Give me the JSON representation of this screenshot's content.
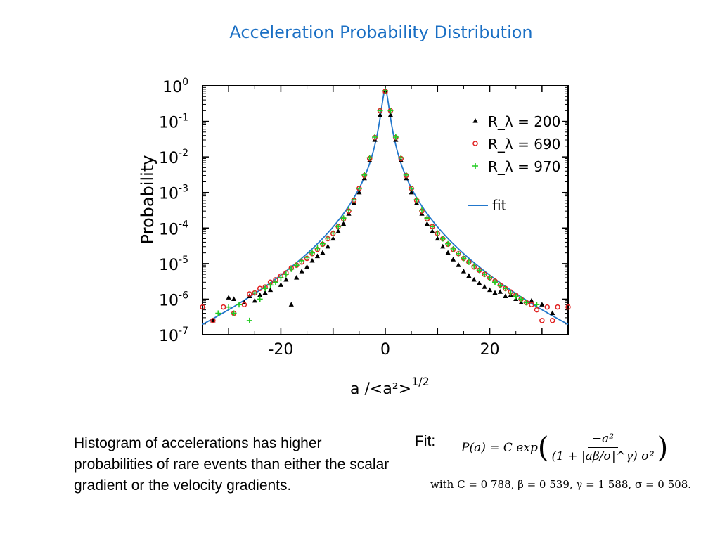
{
  "slide": {
    "title": "Acceleration Probability Distribution",
    "body_text": "Histogram of accelerations has higher probabilities of rare events than either the scalar gradient or the velocity gradients.",
    "fit_label": "Fit:",
    "formula": {
      "lhs": "P(a) = C exp",
      "numerator": "−a²",
      "denominator": "(1 + |aβ/σ|^γ) σ²"
    },
    "parameters": "with C = 0 788, β = 0 539, γ = 1 588, σ = 0 508."
  },
  "chart_data": {
    "type": "scatter",
    "title": "",
    "xlabel": "a /<a²>^1/2",
    "ylabel": "Probability",
    "xlim": [
      -35,
      35
    ],
    "ylim": [
      1e-07,
      1
    ],
    "yscale": "log",
    "xticks": [
      -20,
      0,
      20
    ],
    "ytick_labels": [
      "10^0",
      "10^-1",
      "10^-2",
      "10^-3",
      "10^-4",
      "10^-5",
      "10^-6",
      "10^-7"
    ],
    "grid": false,
    "legend_position": "top-right",
    "fit_params": {
      "C": 0.788,
      "beta": 0.539,
      "gamma": 1.588,
      "sigma": 0.508
    },
    "series": [
      {
        "name": "R_λ = 200",
        "marker": "triangle",
        "color": "#000000",
        "points": [
          [
            -33,
            2.5e-07
          ],
          [
            -30,
            1.1e-06
          ],
          [
            -29,
            1e-06
          ],
          [
            -27,
            8e-07
          ],
          [
            -26,
            1.2e-06
          ],
          [
            -25,
            9e-07
          ],
          [
            -24,
            1.3e-06
          ],
          [
            -23,
            1.5e-06
          ],
          [
            -22,
            1.8e-06
          ],
          [
            -20,
            2.5e-06
          ],
          [
            -19,
            3.5e-06
          ],
          [
            -18,
            7e-07
          ],
          [
            -17,
            4e-06
          ],
          [
            -16,
            6e-06
          ],
          [
            -15,
            8e-06
          ],
          [
            -14,
            1.2e-05
          ],
          [
            -13,
            1.6e-05
          ],
          [
            -12,
            2e-05
          ],
          [
            -11,
            3e-05
          ],
          [
            -10,
            5e-05
          ],
          [
            -9,
            8e-05
          ],
          [
            -8,
            0.00013
          ],
          [
            -7,
            0.00025
          ],
          [
            -6,
            0.0005
          ],
          [
            -5,
            0.001
          ],
          [
            -4,
            0.0025
          ],
          [
            -3,
            0.008
          ],
          [
            -2,
            0.03
          ],
          [
            -1,
            0.15
          ],
          [
            0,
            0.7
          ],
          [
            1,
            0.15
          ],
          [
            2,
            0.03
          ],
          [
            3,
            0.008
          ],
          [
            4,
            0.0025
          ],
          [
            5,
            0.001
          ],
          [
            6,
            0.0005
          ],
          [
            7,
            0.00025
          ],
          [
            8,
            0.00013
          ],
          [
            9,
            8e-05
          ],
          [
            10,
            5e-05
          ],
          [
            11,
            3e-05
          ],
          [
            12,
            2e-05
          ],
          [
            13,
            1.3e-05
          ],
          [
            14,
            9e-06
          ],
          [
            15,
            6e-06
          ],
          [
            16,
            4.5e-06
          ],
          [
            17,
            3.5e-06
          ],
          [
            18,
            2.8e-06
          ],
          [
            19,
            2.2e-06
          ],
          [
            20,
            1.8e-06
          ],
          [
            21,
            1.5e-06
          ],
          [
            22,
            1.6e-06
          ],
          [
            23,
            1.2e-06
          ],
          [
            24,
            1.3e-06
          ],
          [
            25,
            1e-06
          ],
          [
            26,
            8e-07
          ],
          [
            28,
            9e-07
          ],
          [
            30,
            7e-07
          ],
          [
            32,
            4e-07
          ]
        ]
      },
      {
        "name": "R_λ = 690",
        "marker": "circle",
        "color": "#e02020",
        "points": [
          [
            -35,
            6e-07
          ],
          [
            -33,
            2.5e-07
          ],
          [
            -31,
            6e-07
          ],
          [
            -29,
            4e-07
          ],
          [
            -27,
            7e-07
          ],
          [
            -26,
            1.4e-06
          ],
          [
            -25,
            1.5e-06
          ],
          [
            -24,
            2e-06
          ],
          [
            -23,
            2.2e-06
          ],
          [
            -22,
            3e-06
          ],
          [
            -21,
            3.5e-06
          ],
          [
            -20,
            4.5e-06
          ],
          [
            -19,
            5.5e-06
          ],
          [
            -18,
            7.5e-06
          ],
          [
            -17,
            9e-06
          ],
          [
            -16,
            1.1e-05
          ],
          [
            -15,
            1.4e-05
          ],
          [
            -14,
            1.9e-05
          ],
          [
            -13,
            2.5e-05
          ],
          [
            -12,
            3.5e-05
          ],
          [
            -11,
            5e-05
          ],
          [
            -10,
            7e-05
          ],
          [
            -9,
            0.00011
          ],
          [
            -8,
            0.00018
          ],
          [
            -7,
            0.0003
          ],
          [
            -6,
            0.0006
          ],
          [
            -5,
            0.0013
          ],
          [
            -4,
            0.003
          ],
          [
            -3,
            0.009
          ],
          [
            -2,
            0.035
          ],
          [
            -1,
            0.2
          ],
          [
            0,
            0.7
          ],
          [
            1,
            0.2
          ],
          [
            2,
            0.035
          ],
          [
            3,
            0.009
          ],
          [
            4,
            0.003
          ],
          [
            5,
            0.0013
          ],
          [
            6,
            0.0006
          ],
          [
            7,
            0.0003
          ],
          [
            8,
            0.00018
          ],
          [
            9,
            0.00011
          ],
          [
            10,
            7e-05
          ],
          [
            11,
            5e-05
          ],
          [
            12,
            3.5e-05
          ],
          [
            13,
            2.5e-05
          ],
          [
            14,
            1.9e-05
          ],
          [
            15,
            1.4e-05
          ],
          [
            16,
            1.1e-05
          ],
          [
            17,
            8e-06
          ],
          [
            18,
            6.5e-06
          ],
          [
            19,
            5e-06
          ],
          [
            20,
            4e-06
          ],
          [
            21,
            3.2e-06
          ],
          [
            22,
            2.5e-06
          ],
          [
            23,
            2e-06
          ],
          [
            24,
            1.6e-06
          ],
          [
            25,
            1.3e-06
          ],
          [
            26,
            1e-06
          ],
          [
            27,
            8e-07
          ],
          [
            28,
            7e-07
          ],
          [
            29,
            5e-07
          ],
          [
            30,
            2.5e-07
          ],
          [
            31,
            6e-07
          ],
          [
            32,
            2.5e-07
          ],
          [
            33,
            6e-07
          ],
          [
            35,
            6e-07
          ]
        ]
      },
      {
        "name": "R_λ = 970",
        "marker": "plus",
        "color": "#22cc22",
        "points": [
          [
            -32,
            4e-07
          ],
          [
            -30,
            6e-07
          ],
          [
            -29,
            4e-07
          ],
          [
            -28,
            7e-07
          ],
          [
            -26,
            2.5e-07
          ],
          [
            -25,
            1.5e-06
          ],
          [
            -24,
            1e-06
          ],
          [
            -23,
            2e-06
          ],
          [
            -22,
            2.5e-06
          ],
          [
            -21,
            3e-06
          ],
          [
            -20,
            4e-06
          ],
          [
            -19,
            5e-06
          ],
          [
            -18,
            7e-06
          ],
          [
            -17,
            9e-06
          ],
          [
            -16,
            1.2e-05
          ],
          [
            -15,
            1.5e-05
          ],
          [
            -14,
            2e-05
          ],
          [
            -13,
            2.7e-05
          ],
          [
            -12,
            3.6e-05
          ],
          [
            -11,
            5.2e-05
          ],
          [
            -10,
            7.2e-05
          ],
          [
            -9,
            0.00011
          ],
          [
            -8,
            0.00019
          ],
          [
            -7,
            0.00032
          ],
          [
            -6,
            0.00062
          ],
          [
            -5,
            0.0013
          ],
          [
            -4,
            0.0031
          ],
          [
            -3,
            0.0095
          ],
          [
            -2,
            0.036
          ],
          [
            -1,
            0.2
          ],
          [
            0,
            0.72
          ],
          [
            1,
            0.2
          ],
          [
            2,
            0.036
          ],
          [
            3,
            0.0095
          ],
          [
            4,
            0.0031
          ],
          [
            5,
            0.0013
          ],
          [
            6,
            0.00062
          ],
          [
            7,
            0.00032
          ],
          [
            8,
            0.00019
          ],
          [
            9,
            0.00011
          ],
          [
            10,
            7.2e-05
          ],
          [
            11,
            5e-05
          ],
          [
            12,
            3.6e-05
          ],
          [
            13,
            2.6e-05
          ],
          [
            14,
            1.9e-05
          ],
          [
            15,
            1.4e-05
          ],
          [
            16,
            1.1e-05
          ],
          [
            17,
            8.5e-06
          ],
          [
            18,
            6.5e-06
          ],
          [
            19,
            5e-06
          ],
          [
            20,
            4e-06
          ],
          [
            21,
            3e-06
          ],
          [
            22,
            2.4e-06
          ],
          [
            23,
            2e-06
          ],
          [
            24,
            1.5e-06
          ],
          [
            25,
            1.2e-06
          ],
          [
            26,
            1e-06
          ],
          [
            27,
            8e-07
          ],
          [
            29,
            7e-07
          ]
        ]
      },
      {
        "name": "fit",
        "marker": "line",
        "color": "#2277cc"
      }
    ]
  }
}
